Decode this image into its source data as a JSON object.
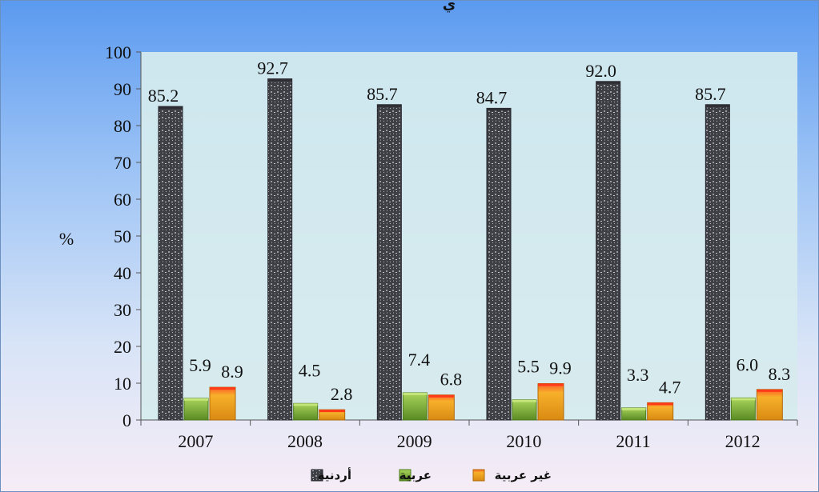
{
  "chart_data": {
    "type": "bar",
    "title": "ي",
    "ylabel": "%",
    "xlabel": "",
    "ylim": [
      0,
      100
    ],
    "yticks": [
      0,
      10,
      20,
      30,
      40,
      50,
      60,
      70,
      80,
      90,
      100
    ],
    "categories": [
      "2007",
      "2008",
      "2009",
      "2010",
      "2011",
      "2012"
    ],
    "series": [
      {
        "name": "أردنية",
        "values": [
          85.2,
          92.7,
          85.7,
          84.7,
          92.0,
          85.7
        ],
        "labels": [
          "85.2",
          "92.7",
          "85.7",
          "84.7",
          "92.0",
          "85.7"
        ],
        "color": "#4a4a52"
      },
      {
        "name": "عربية",
        "values": [
          5.9,
          4.5,
          7.4,
          5.5,
          3.3,
          6.0
        ],
        "labels": [
          "5.9",
          "4.5",
          "7.4",
          "5.5",
          "3.3",
          "6.0"
        ],
        "color": "#7fae3a"
      },
      {
        "name": "غير عربية",
        "values": [
          8.9,
          2.8,
          6.8,
          9.9,
          4.7,
          8.3
        ],
        "labels": [
          "8.9",
          "2.8",
          "6.8",
          "9.9",
          "4.7",
          "8.3"
        ],
        "color": "#f0a020"
      }
    ],
    "legend_position": "bottom",
    "grid": false
  }
}
